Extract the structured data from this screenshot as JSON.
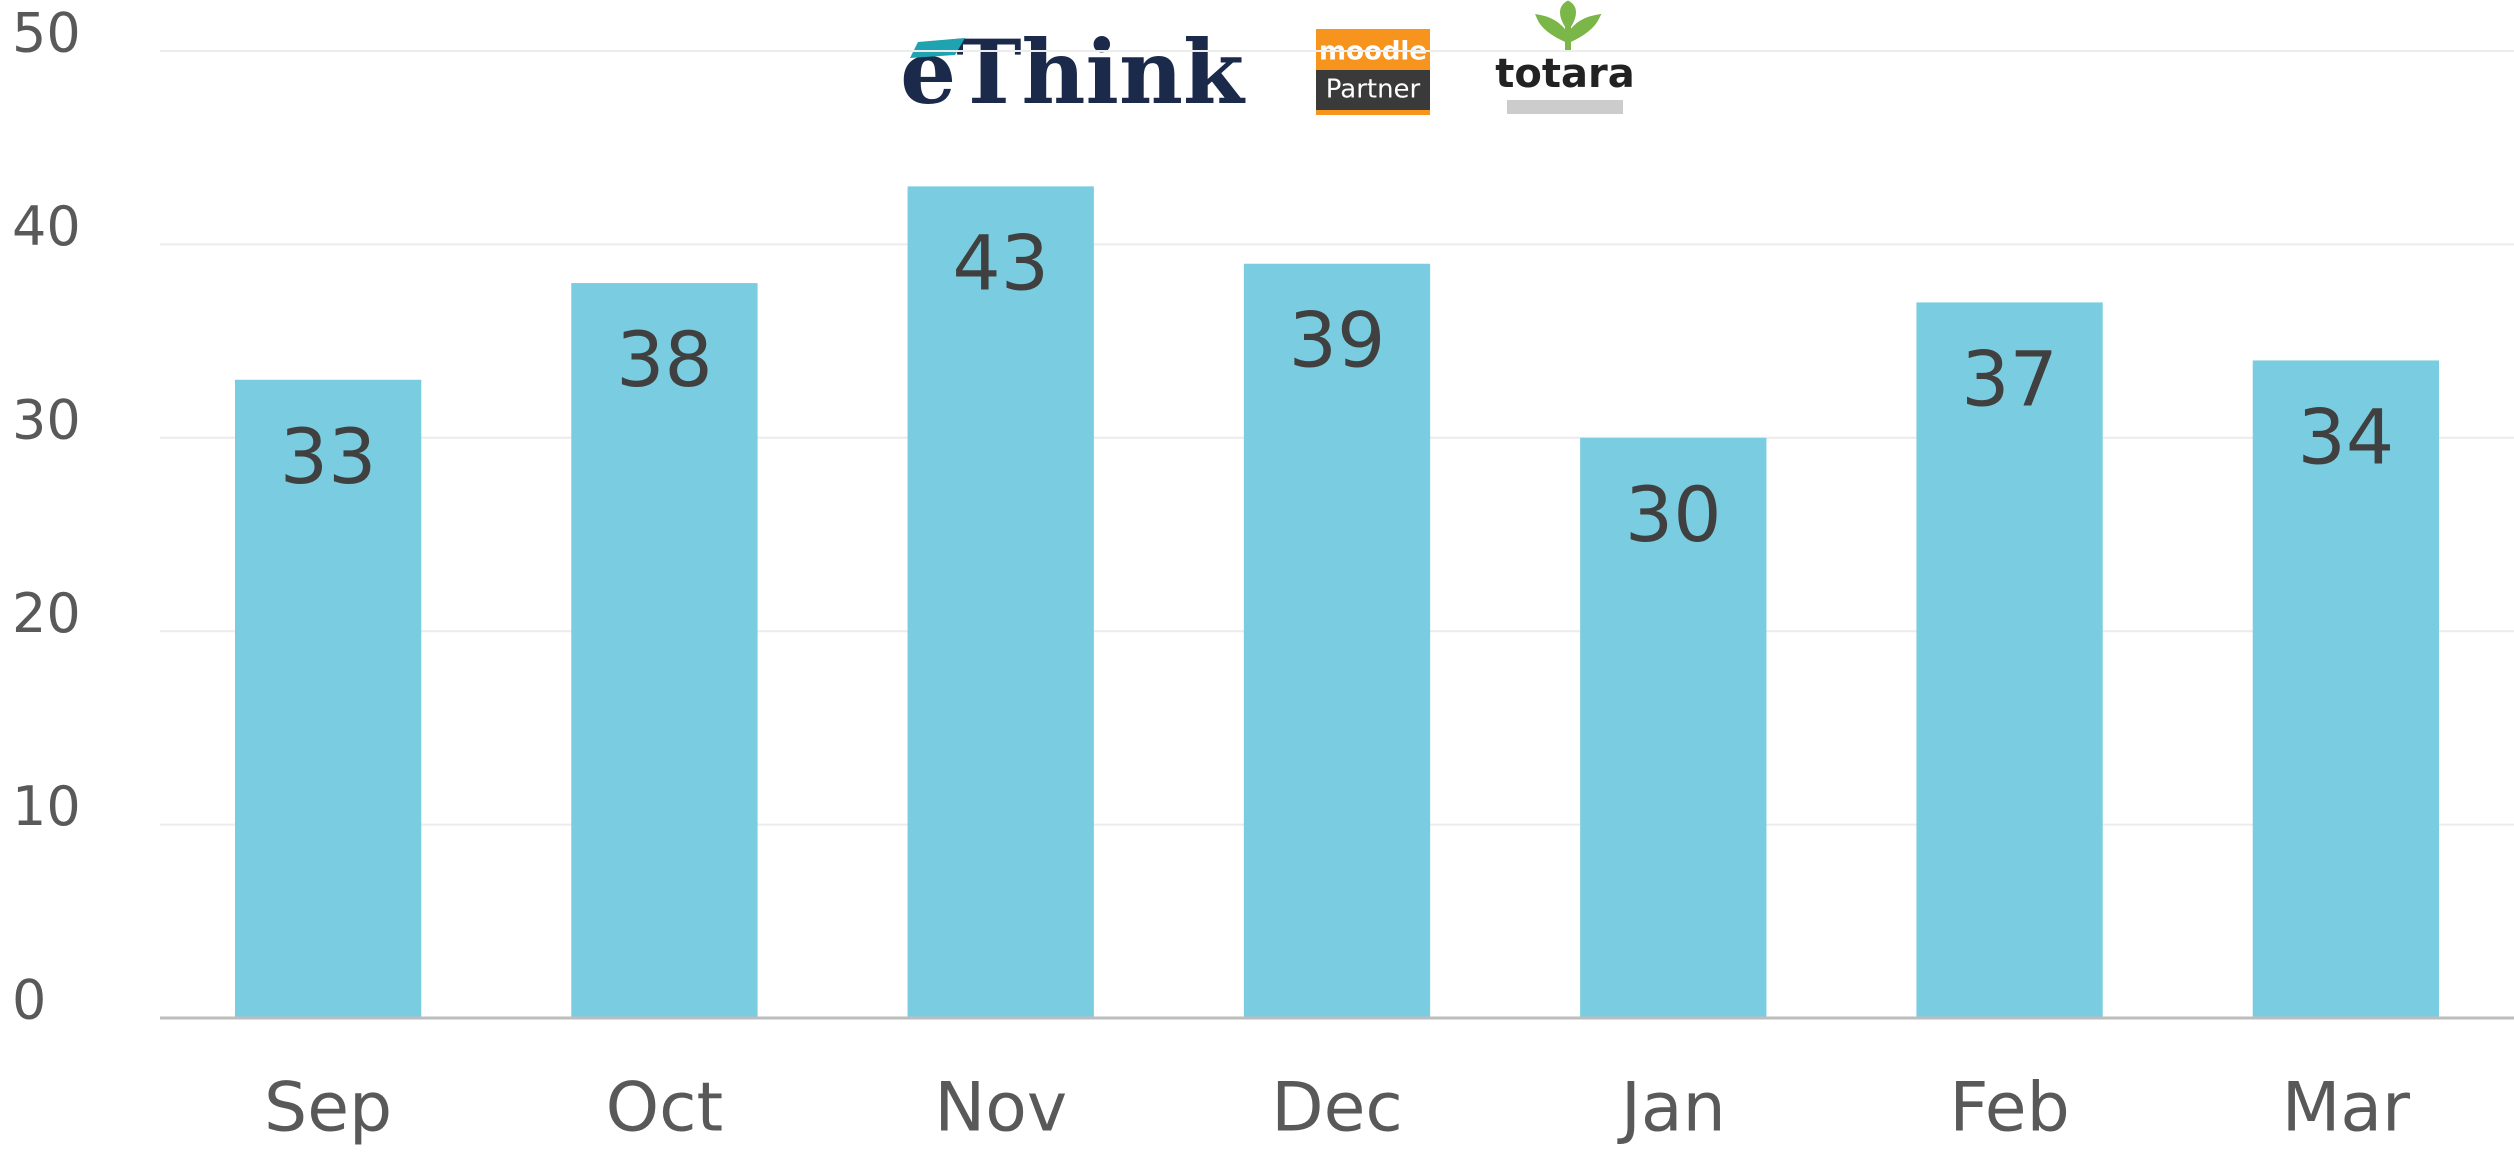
{
  "logos": {
    "ethink": "eThink",
    "moodle": "moodle",
    "partner": "Partner",
    "totara": "totara"
  },
  "chart_data": {
    "type": "bar",
    "categories": [
      "Sep",
      "Oct",
      "Nov",
      "Dec",
      "Jan",
      "Feb",
      "Mar"
    ],
    "values": [
      33,
      38,
      43,
      39,
      30,
      37,
      34
    ],
    "color": "#7acde0",
    "ylim": [
      0,
      50
    ],
    "yticks": [
      0,
      10,
      20,
      30,
      40,
      50
    ],
    "grid": true
  }
}
